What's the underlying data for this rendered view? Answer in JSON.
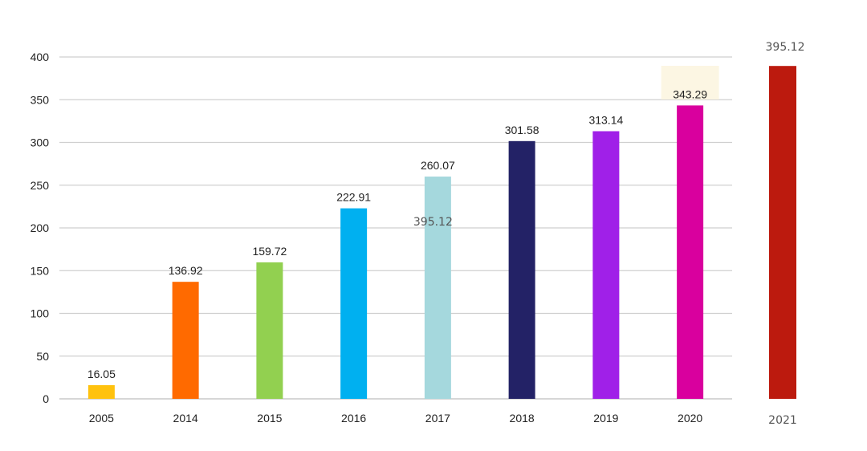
{
  "chart_data": {
    "type": "bar",
    "categories": [
      "2005",
      "2014",
      "2015",
      "2016",
      "2017",
      "2018",
      "2019",
      "2020"
    ],
    "values": [
      16.05,
      136.92,
      159.72,
      222.91,
      260.07,
      301.58,
      313.14,
      343.29
    ],
    "data_labels": [
      "16.05",
      "136.92",
      "159.72",
      "222.91",
      "260.07",
      "301.58",
      "313.14",
      "343.29"
    ],
    "colors": [
      "#FFC20E",
      "#FF6A00",
      "#92D050",
      "#00B0F0",
      "#A5D8DD",
      "#232266",
      "#A020E8",
      "#D9009E"
    ],
    "ylim": [
      0,
      400
    ],
    "yticks": [
      0,
      50,
      100,
      150,
      200,
      250,
      300,
      350,
      400
    ],
    "ytick_labels": [
      "0",
      "50",
      "100",
      "150",
      "200",
      "250",
      "300",
      "350",
      "400"
    ],
    "grid": true,
    "highlight_category": "2020",
    "highlight_color": "#FCF6E3",
    "extra_bar": {
      "category": "2021",
      "value": 395.12,
      "label": "395.12",
      "color": "#BC1A0E"
    },
    "overlay_text": "395.12",
    "overlay_near_category": "2017",
    "overlay_value": 203
  }
}
